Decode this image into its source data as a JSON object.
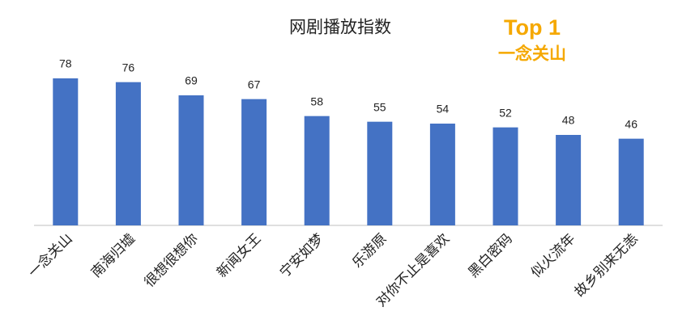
{
  "chart_data": {
    "type": "bar",
    "title": "网剧播放指数",
    "annotations": [
      "Top 1",
      "一念关山"
    ],
    "categories": [
      "一念关山",
      "南海归墟",
      "很想很想你",
      "新闻女王",
      "宁安如梦",
      "乐游原",
      "对你不止是喜欢",
      "黑白密码",
      "似火流年",
      "故乡别来无恙"
    ],
    "values": [
      78,
      76,
      69,
      67,
      58,
      55,
      54,
      52,
      48,
      46
    ],
    "color": "#4472c4",
    "annotation_color": "#f5a800"
  }
}
